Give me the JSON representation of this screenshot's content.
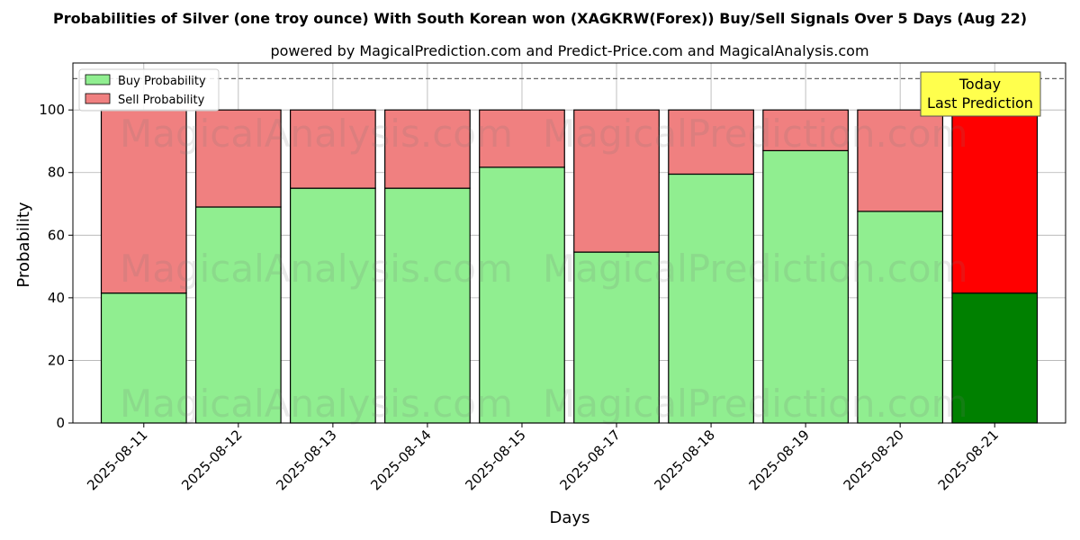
{
  "title": "Probabilities of Silver (one troy ounce) With South Korean won (XAGKRW(Forex)) Buy/Sell Signals Over 5 Days (Aug 22)",
  "subtitle": "powered by MagicalPrediction.com and Predict-Price.com and MagicalAnalysis.com",
  "watermarks": [
    "MagicalAnalysis.com",
    "MagicalPrediction.com"
  ],
  "annotation": {
    "line1": "Today",
    "line2": "Last Prediction"
  },
  "colors": {
    "buy": "#90ee90",
    "sell": "#f08080",
    "buy_last": "#008000",
    "sell_last": "#ff0000",
    "annotation_bg": "#ffff4d"
  },
  "chart_data": {
    "type": "bar",
    "stacked": true,
    "categories": [
      "2025-08-11",
      "2025-08-12",
      "2025-08-13",
      "2025-08-14",
      "2025-08-15",
      "2025-08-17",
      "2025-08-18",
      "2025-08-19",
      "2025-08-20",
      "2025-08-21"
    ],
    "series": [
      {
        "name": "Buy Probability",
        "values": [
          41.5,
          69.0,
          75.0,
          75.0,
          81.7,
          54.6,
          79.5,
          87.0,
          67.6,
          41.5
        ]
      },
      {
        "name": "Sell Probability",
        "values": [
          58.5,
          31.0,
          25.0,
          25.0,
          18.3,
          45.4,
          20.5,
          13.0,
          32.4,
          58.5
        ]
      }
    ],
    "xlabel": "Days",
    "ylabel": "Probability",
    "ylim": [
      0,
      115
    ],
    "yticks": [
      0,
      20,
      40,
      60,
      80,
      100
    ],
    "reference_line": 110,
    "grid": true,
    "legend_position": "top-left"
  }
}
